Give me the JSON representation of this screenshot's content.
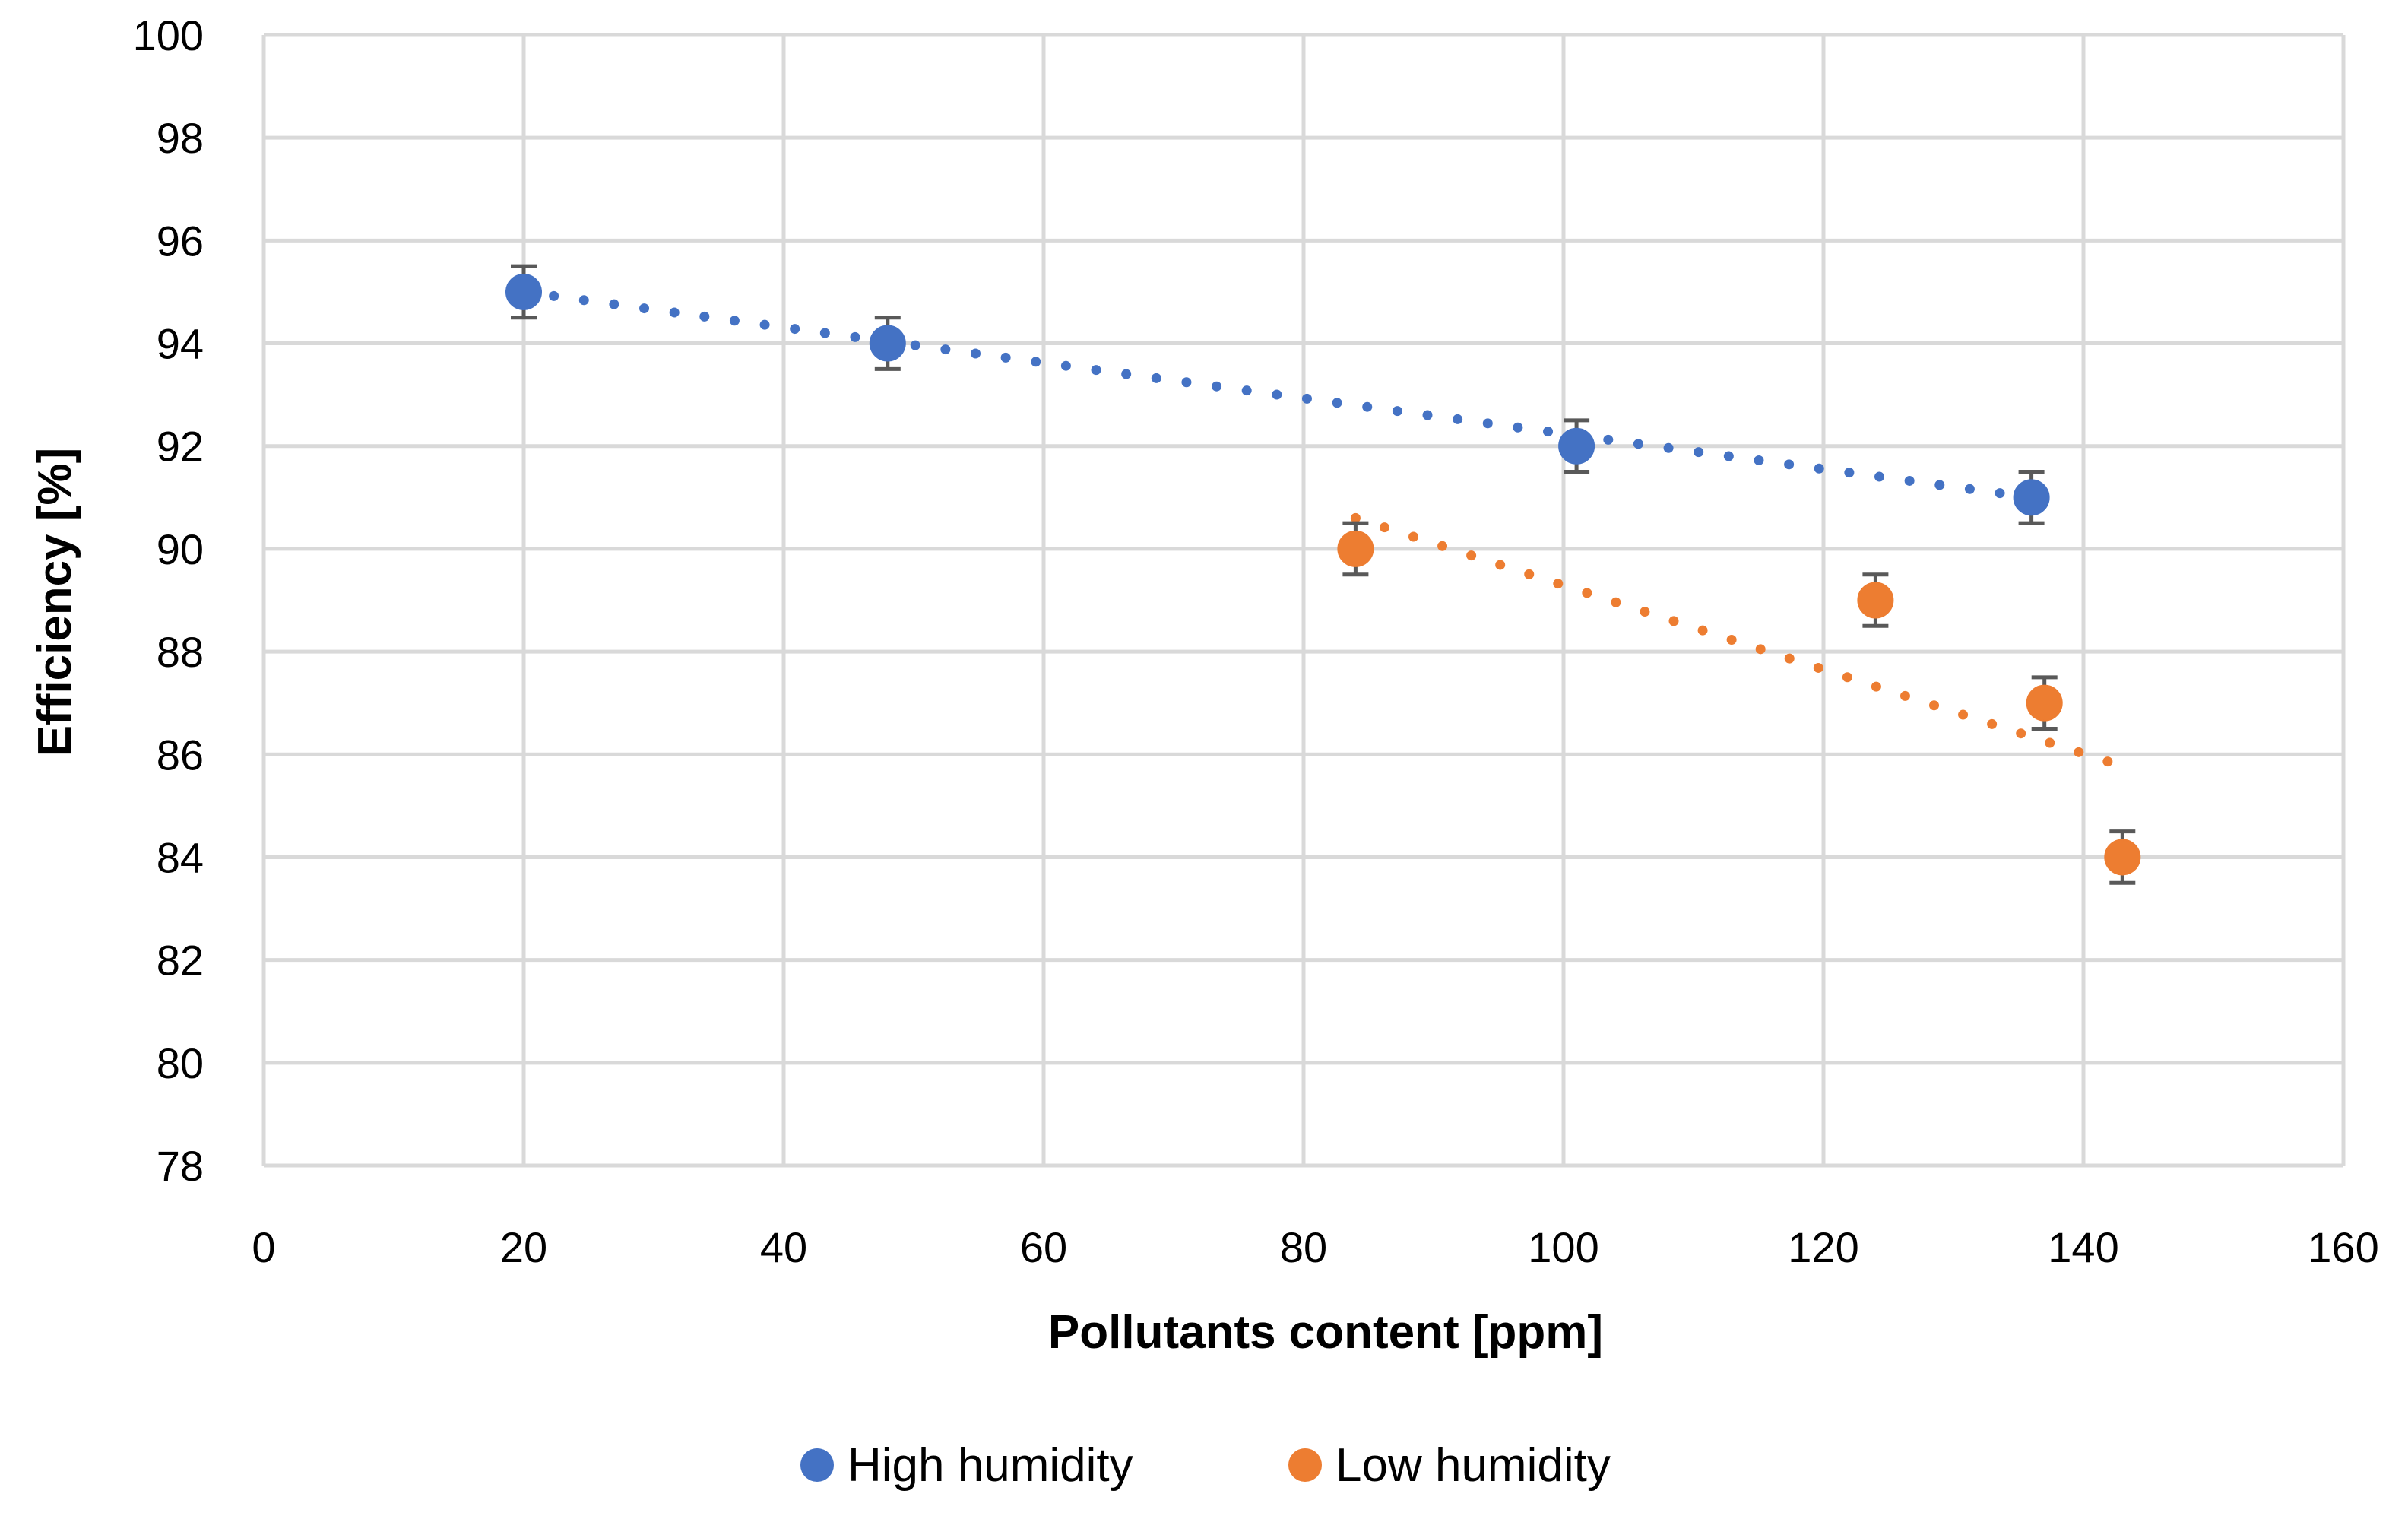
{
  "chart_data": {
    "type": "scatter",
    "title": "",
    "xlabel": "Pollutants content [ppm]",
    "ylabel": "Efficiency [%]",
    "xlim": [
      0,
      160
    ],
    "ylim": [
      78,
      100
    ],
    "xticks": [
      0,
      20,
      40,
      60,
      80,
      100,
      120,
      140,
      160
    ],
    "yticks": [
      78,
      80,
      82,
      84,
      86,
      88,
      90,
      92,
      94,
      96,
      98,
      100
    ],
    "grid": true,
    "legend_position": "bottom",
    "series": [
      {
        "name": "High humidity",
        "color": "#4472C4",
        "points": [
          {
            "x": 20,
            "y": 95,
            "err": 0.5
          },
          {
            "x": 48,
            "y": 94,
            "err": 0.5
          },
          {
            "x": 101,
            "y": 92,
            "err": 0.5
          },
          {
            "x": 136,
            "y": 91,
            "err": 0.5
          }
        ],
        "trendline": {
          "type": "linear",
          "x_start": 20,
          "x_end": 136,
          "y_start": 95.0,
          "y_end": 91.0
        }
      },
      {
        "name": "Low humidity",
        "color": "#ED7D31",
        "points": [
          {
            "x": 84,
            "y": 90,
            "err": 0.5
          },
          {
            "x": 124,
            "y": 89,
            "err": 0.5
          },
          {
            "x": 137,
            "y": 87,
            "err": 0.5
          },
          {
            "x": 143,
            "y": 84,
            "err": 0.5
          }
        ],
        "trendline": {
          "type": "linear",
          "x_start": 84,
          "x_end": 142,
          "y_start": 90.6,
          "y_end": 85.85
        }
      }
    ]
  }
}
